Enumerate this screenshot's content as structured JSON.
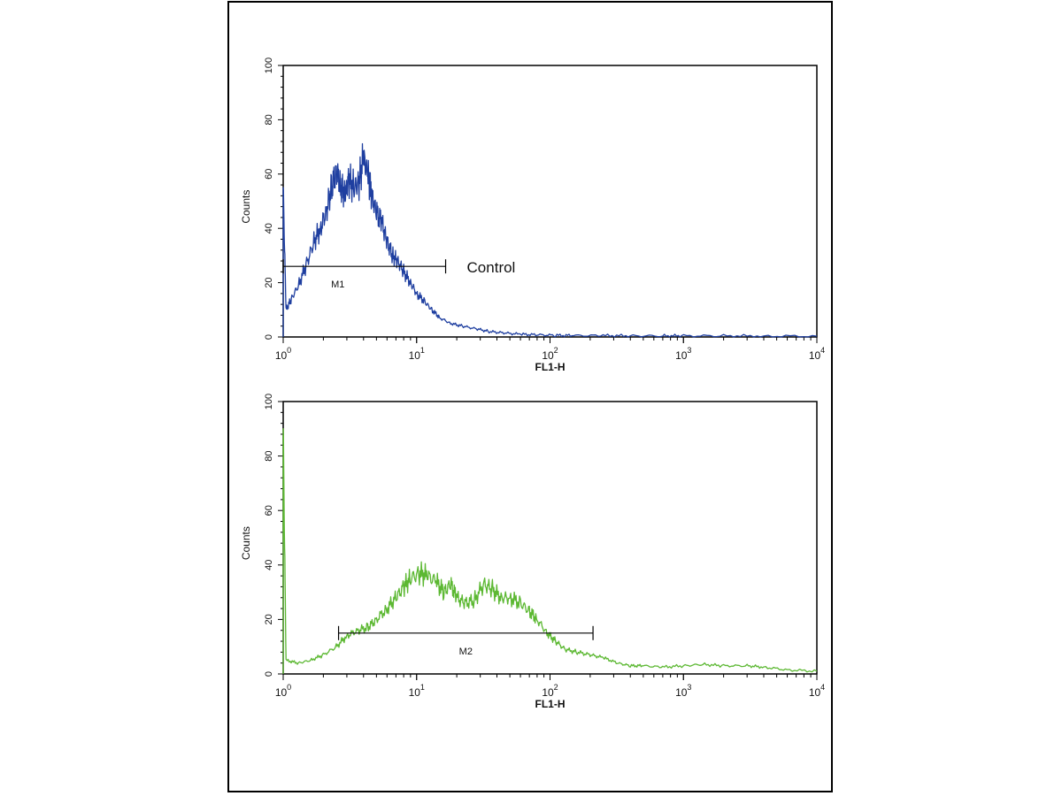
{
  "chart_data": [
    {
      "type": "line",
      "x_scale": "log",
      "xlim": [
        1,
        10000
      ],
      "ylim": [
        0,
        100
      ],
      "xlabel": "FL1-H",
      "ylabel": "Counts",
      "x_ticks": [
        {
          "base": "10",
          "exp": "0"
        },
        {
          "base": "10",
          "exp": "1"
        },
        {
          "base": "10",
          "exp": "2"
        },
        {
          "base": "10",
          "exp": "3"
        },
        {
          "base": "10",
          "exp": "4"
        }
      ],
      "y_ticks": [
        "0",
        "20",
        "40",
        "60",
        "80",
        "100"
      ],
      "grid": false,
      "series": [
        {
          "color": "#1f3fa0",
          "x": [
            1.0,
            1.05,
            1.15,
            1.3,
            1.5,
            1.7,
            1.9,
            2.1,
            2.3,
            2.5,
            2.7,
            2.9,
            3.1,
            3.4,
            3.7,
            4.0,
            4.3,
            4.6,
            5.0,
            5.5,
            6.0,
            6.6,
            7.2,
            8.0,
            9.0,
            10.0,
            11.5,
            13.0,
            15.0,
            18.0,
            22.0,
            28.0,
            35.0,
            45.0,
            60.0,
            80.0,
            110.0,
            150.0,
            250.0,
            400.0,
            700.0,
            1000.0,
            2000.0,
            4000.0,
            10000.0
          ],
          "y": [
            55,
            10,
            14,
            19,
            27,
            35,
            40,
            46,
            55,
            61,
            56,
            52,
            58,
            55,
            57,
            66,
            60,
            52,
            46,
            42,
            35,
            30,
            28,
            24,
            20,
            16,
            13,
            10,
            7,
            5,
            4,
            3,
            2,
            1.5,
            1,
            0.8,
            0.6,
            0.5,
            0.5,
            0.4,
            0.4,
            0.4,
            0.4,
            0.3,
            0.3
          ]
        }
      ],
      "markers": [
        {
          "label": "M1",
          "x_start": 1.0,
          "x_end": 16.5,
          "y": 26
        }
      ],
      "annotations": [
        {
          "text": "Control"
        }
      ]
    },
    {
      "type": "line",
      "x_scale": "log",
      "xlim": [
        1,
        10000
      ],
      "ylim": [
        0,
        100
      ],
      "xlabel": "FL1-H",
      "ylabel": "Counts",
      "x_ticks": [
        {
          "base": "10",
          "exp": "0"
        },
        {
          "base": "10",
          "exp": "1"
        },
        {
          "base": "10",
          "exp": "2"
        },
        {
          "base": "10",
          "exp": "3"
        },
        {
          "base": "10",
          "exp": "4"
        }
      ],
      "y_ticks": [
        "0",
        "20",
        "40",
        "60",
        "80",
        "100"
      ],
      "grid": false,
      "series": [
        {
          "color": "#5cb832",
          "x": [
            1.0,
            1.05,
            1.3,
            1.6,
            2.0,
            2.5,
            3.0,
            3.6,
            4.3,
            5.0,
            6.0,
            7.0,
            8.0,
            9.0,
            10.5,
            12.0,
            14.0,
            16.0,
            18.0,
            20.0,
            23.0,
            27.0,
            32.0,
            37.0,
            43.0,
            50.0,
            60.0,
            70.0,
            80.0,
            95.0,
            110.0,
            130.0,
            160.0,
            200.0,
            250.0,
            320.0,
            400.0,
            500.0,
            700.0,
            1000.0,
            1400.0,
            2000.0,
            3000.0,
            4000.0,
            6000.0,
            10000.0
          ],
          "y": [
            90,
            5,
            4,
            5,
            7,
            10,
            14,
            16,
            17,
            20,
            24,
            28,
            32,
            35,
            37,
            36,
            34,
            30,
            33,
            28,
            26,
            27,
            33,
            31,
            28,
            28,
            26,
            23,
            20,
            15,
            12,
            9,
            8,
            7,
            6,
            4,
            3,
            3,
            2.5,
            3,
            3.5,
            3,
            3,
            2.5,
            1.5,
            1
          ]
        }
      ],
      "markers": [
        {
          "label": "M2",
          "x_start": 2.6,
          "x_end": 210.0,
          "y": 15
        }
      ],
      "annotations": []
    }
  ]
}
